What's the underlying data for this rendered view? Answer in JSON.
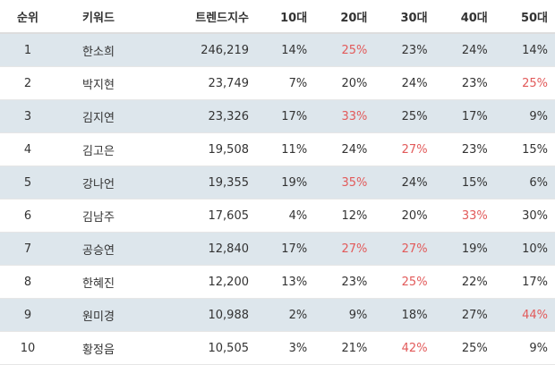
{
  "headers": {
    "rank": "순위",
    "keyword": "키워드",
    "trend": "트렌드지수",
    "age10": "10대",
    "age20": "20대",
    "age30": "30대",
    "age40": "40대",
    "age50": "50대"
  },
  "highlight_color": "#e25a5a",
  "row_shade_color": "#dde6ec",
  "rows": [
    {
      "rank": "1",
      "keyword": "한소희",
      "trend": "246,219",
      "age10": "14%",
      "age20": "25%",
      "age30": "23%",
      "age40": "24%",
      "age50": "14%",
      "highlight": "age20"
    },
    {
      "rank": "2",
      "keyword": "박지현",
      "trend": "23,749",
      "age10": "7%",
      "age20": "20%",
      "age30": "24%",
      "age40": "23%",
      "age50": "25%",
      "highlight": "age50"
    },
    {
      "rank": "3",
      "keyword": "김지연",
      "trend": "23,326",
      "age10": "17%",
      "age20": "33%",
      "age30": "25%",
      "age40": "17%",
      "age50": "9%",
      "highlight": "age20"
    },
    {
      "rank": "4",
      "keyword": "김고은",
      "trend": "19,508",
      "age10": "11%",
      "age20": "24%",
      "age30": "27%",
      "age40": "23%",
      "age50": "15%",
      "highlight": "age30"
    },
    {
      "rank": "5",
      "keyword": "강나언",
      "trend": "19,355",
      "age10": "19%",
      "age20": "35%",
      "age30": "24%",
      "age40": "15%",
      "age50": "6%",
      "highlight": "age20"
    },
    {
      "rank": "6",
      "keyword": "김남주",
      "trend": "17,605",
      "age10": "4%",
      "age20": "12%",
      "age30": "20%",
      "age40": "33%",
      "age50": "30%",
      "highlight": "age40"
    },
    {
      "rank": "7",
      "keyword": "공승연",
      "trend": "12,840",
      "age10": "17%",
      "age20": "27%",
      "age30": "27%",
      "age40": "19%",
      "age50": "10%",
      "highlight": "age20,age30"
    },
    {
      "rank": "8",
      "keyword": "한혜진",
      "trend": "12,200",
      "age10": "13%",
      "age20": "23%",
      "age30": "25%",
      "age40": "22%",
      "age50": "17%",
      "highlight": "age30"
    },
    {
      "rank": "9",
      "keyword": "원미경",
      "trend": "10,988",
      "age10": "2%",
      "age20": "9%",
      "age30": "18%",
      "age40": "27%",
      "age50": "44%",
      "highlight": "age50"
    },
    {
      "rank": "10",
      "keyword": "황정음",
      "trend": "10,505",
      "age10": "3%",
      "age20": "21%",
      "age30": "42%",
      "age40": "25%",
      "age50": "9%",
      "highlight": "age30"
    }
  ]
}
